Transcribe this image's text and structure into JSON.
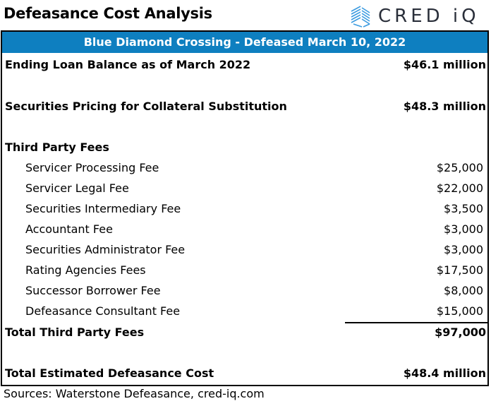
{
  "header": {
    "title": "Defeasance Cost Analysis",
    "logo_text": "CRED iQ",
    "logo_color": "#3b9be0"
  },
  "table": {
    "banner": "Blue Diamond Crossing - Defeased March 10, 2022",
    "banner_color": "#0e7fc0",
    "ending_balance": {
      "label": "Ending Loan Balance as of March 2022",
      "value": "$46.1 million"
    },
    "securities_pricing": {
      "label": "Securities Pricing for Collateral Substitution",
      "value": "$48.3 million"
    },
    "third_party_heading": "Third Party Fees",
    "fees": [
      {
        "label": "Servicer Processing Fee",
        "value": "$25,000"
      },
      {
        "label": "Servicer Legal Fee",
        "value": "$22,000"
      },
      {
        "label": "Securities Intermediary Fee",
        "value": "$3,500"
      },
      {
        "label": "Accountant Fee",
        "value": "$3,000"
      },
      {
        "label": "Securities Administrator Fee",
        "value": "$3,000"
      },
      {
        "label": "Rating Agencies Fees",
        "value": "$17,500"
      },
      {
        "label": "Successor Borrower Fee",
        "value": "$8,000"
      },
      {
        "label": "Defeasance Consultant Fee",
        "value": "$15,000"
      }
    ],
    "total_fees": {
      "label": "Total Third Party Fees",
      "value": "$97,000"
    },
    "total_cost": {
      "label": "Total Estimated Defeasance Cost",
      "value": "$48.4 million"
    }
  },
  "footer": {
    "sources": "Sources: Waterstone Defeasance, cred-iq.com"
  }
}
